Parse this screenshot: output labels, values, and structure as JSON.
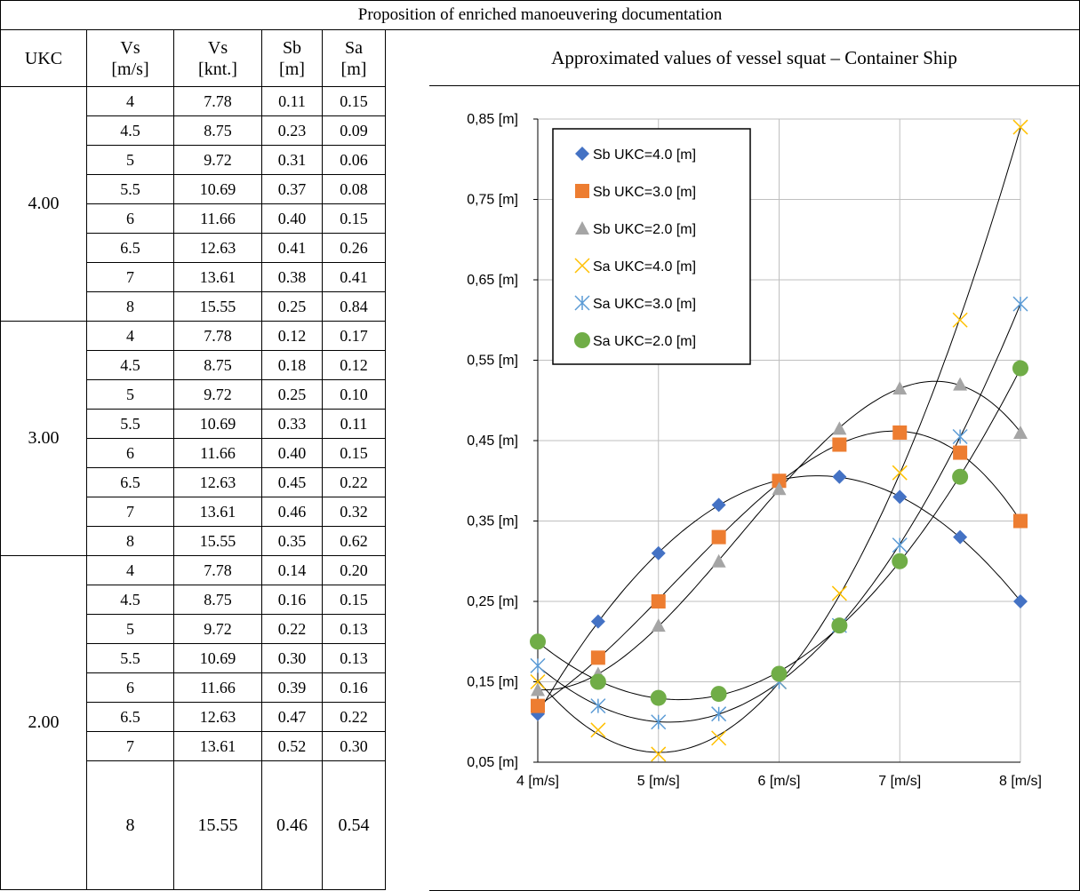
{
  "header": {
    "title": "Proposition of enriched manoeuvering documentation"
  },
  "table": {
    "columns": [
      "UKC",
      "Vs [m/s]",
      "Vs [knt.]",
      "Sb [m]",
      "Sa [m]"
    ],
    "col_top": [
      "",
      "Vs",
      "Vs",
      "Sb",
      "Sa"
    ],
    "col_bottom": [
      "UKC",
      "[m/s]",
      "[knt.]",
      "[m]",
      "[m]"
    ],
    "groups": [
      {
        "ukc": "4.00",
        "rows": [
          [
            "4",
            "7.78",
            "0.11",
            "0.15"
          ],
          [
            "4.5",
            "8.75",
            "0.23",
            "0.09"
          ],
          [
            "5",
            "9.72",
            "0.31",
            "0.06"
          ],
          [
            "5.5",
            "10.69",
            "0.37",
            "0.08"
          ],
          [
            "6",
            "11.66",
            "0.40",
            "0.15"
          ],
          [
            "6.5",
            "12.63",
            "0.41",
            "0.26"
          ],
          [
            "7",
            "13.61",
            "0.38",
            "0.41"
          ],
          [
            "8",
            "15.55",
            "0.25",
            "0.84"
          ]
        ]
      },
      {
        "ukc": "3.00",
        "rows": [
          [
            "4",
            "7.78",
            "0.12",
            "0.17"
          ],
          [
            "4.5",
            "8.75",
            "0.18",
            "0.12"
          ],
          [
            "5",
            "9.72",
            "0.25",
            "0.10"
          ],
          [
            "5.5",
            "10.69",
            "0.33",
            "0.11"
          ],
          [
            "6",
            "11.66",
            "0.40",
            "0.15"
          ],
          [
            "6.5",
            "12.63",
            "0.45",
            "0.22"
          ],
          [
            "7",
            "13.61",
            "0.46",
            "0.32"
          ],
          [
            "8",
            "15.55",
            "0.35",
            "0.62"
          ]
        ]
      },
      {
        "ukc": "2.00",
        "rows": [
          [
            "4",
            "7.78",
            "0.14",
            "0.20"
          ],
          [
            "4.5",
            "8.75",
            "0.16",
            "0.15"
          ],
          [
            "5",
            "9.72",
            "0.22",
            "0.13"
          ],
          [
            "5.5",
            "10.69",
            "0.30",
            "0.13"
          ],
          [
            "6",
            "11.66",
            "0.39",
            "0.16"
          ],
          [
            "6.5",
            "12.63",
            "0.47",
            "0.22"
          ],
          [
            "7",
            "13.61",
            "0.52",
            "0.30"
          ],
          [
            "8",
            "15.55",
            "0.46",
            "0.54"
          ]
        ]
      }
    ]
  },
  "chart_data": {
    "type": "scatter",
    "title": "Approximated values of vessel squat – Container Ship",
    "xlim": [
      4,
      8
    ],
    "ylim": [
      0.05,
      0.85
    ],
    "x_ticks": [
      4,
      5,
      6,
      7,
      8
    ],
    "x_tick_labels": [
      "4 [m/s]",
      "5 [m/s]",
      "6 [m/s]",
      "7 [m/s]",
      "8 [m/s]"
    ],
    "y_ticks": [
      0.05,
      0.15,
      0.25,
      0.35,
      0.45,
      0.55,
      0.65,
      0.75,
      0.85
    ],
    "y_tick_labels": [
      "0,05 [m]",
      "0,15 [m]",
      "0,25 [m]",
      "0,35 [m]",
      "0,45 [m]",
      "0,55 [m]",
      "0,65 [m]",
      "0,75 [m]",
      "0,85 [m]"
    ],
    "grid": true,
    "legend_position": "top-left",
    "trendline": "polynomial",
    "series": [
      {
        "name": "Sb UKC=4.0 [m]",
        "marker": "diamond",
        "color": "#4472C4",
        "x": [
          4,
          4.5,
          5,
          5.5,
          6,
          6.5,
          7,
          7.5,
          8
        ],
        "y": [
          0.11,
          0.225,
          0.31,
          0.37,
          0.4,
          0.405,
          0.38,
          0.33,
          0.25
        ]
      },
      {
        "name": "Sb UKC=3.0 [m]",
        "marker": "square",
        "color": "#ED7D31",
        "x": [
          4,
          4.5,
          5,
          5.5,
          6,
          6.5,
          7,
          7.5,
          8
        ],
        "y": [
          0.12,
          0.18,
          0.25,
          0.33,
          0.4,
          0.445,
          0.46,
          0.435,
          0.35
        ]
      },
      {
        "name": "Sb UKC=2.0 [m]",
        "marker": "triangle",
        "color": "#A5A5A5",
        "x": [
          4,
          4.5,
          5,
          5.5,
          6,
          6.5,
          7,
          7.5,
          8
        ],
        "y": [
          0.14,
          0.16,
          0.22,
          0.3,
          0.39,
          0.465,
          0.515,
          0.52,
          0.46
        ]
      },
      {
        "name": "Sa UKC=4.0 [m]",
        "marker": "x",
        "color": "#FFC000",
        "x": [
          4,
          4.5,
          5,
          5.5,
          6,
          6.5,
          7,
          7.5,
          8
        ],
        "y": [
          0.15,
          0.09,
          0.06,
          0.08,
          0.15,
          0.26,
          0.41,
          0.6,
          0.84
        ]
      },
      {
        "name": "Sa UKC=3.0 [m]",
        "marker": "star",
        "color": "#5B9BD5",
        "x": [
          4,
          4.5,
          5,
          5.5,
          6,
          6.5,
          7,
          7.5,
          8
        ],
        "y": [
          0.17,
          0.12,
          0.1,
          0.11,
          0.15,
          0.22,
          0.32,
          0.455,
          0.62
        ]
      },
      {
        "name": "Sa UKC=2.0 [m]",
        "marker": "circle",
        "color": "#70AD47",
        "x": [
          4,
          4.5,
          5,
          5.5,
          6,
          6.5,
          7,
          7.5,
          8
        ],
        "y": [
          0.2,
          0.15,
          0.13,
          0.135,
          0.16,
          0.22,
          0.3,
          0.405,
          0.54
        ]
      }
    ]
  }
}
